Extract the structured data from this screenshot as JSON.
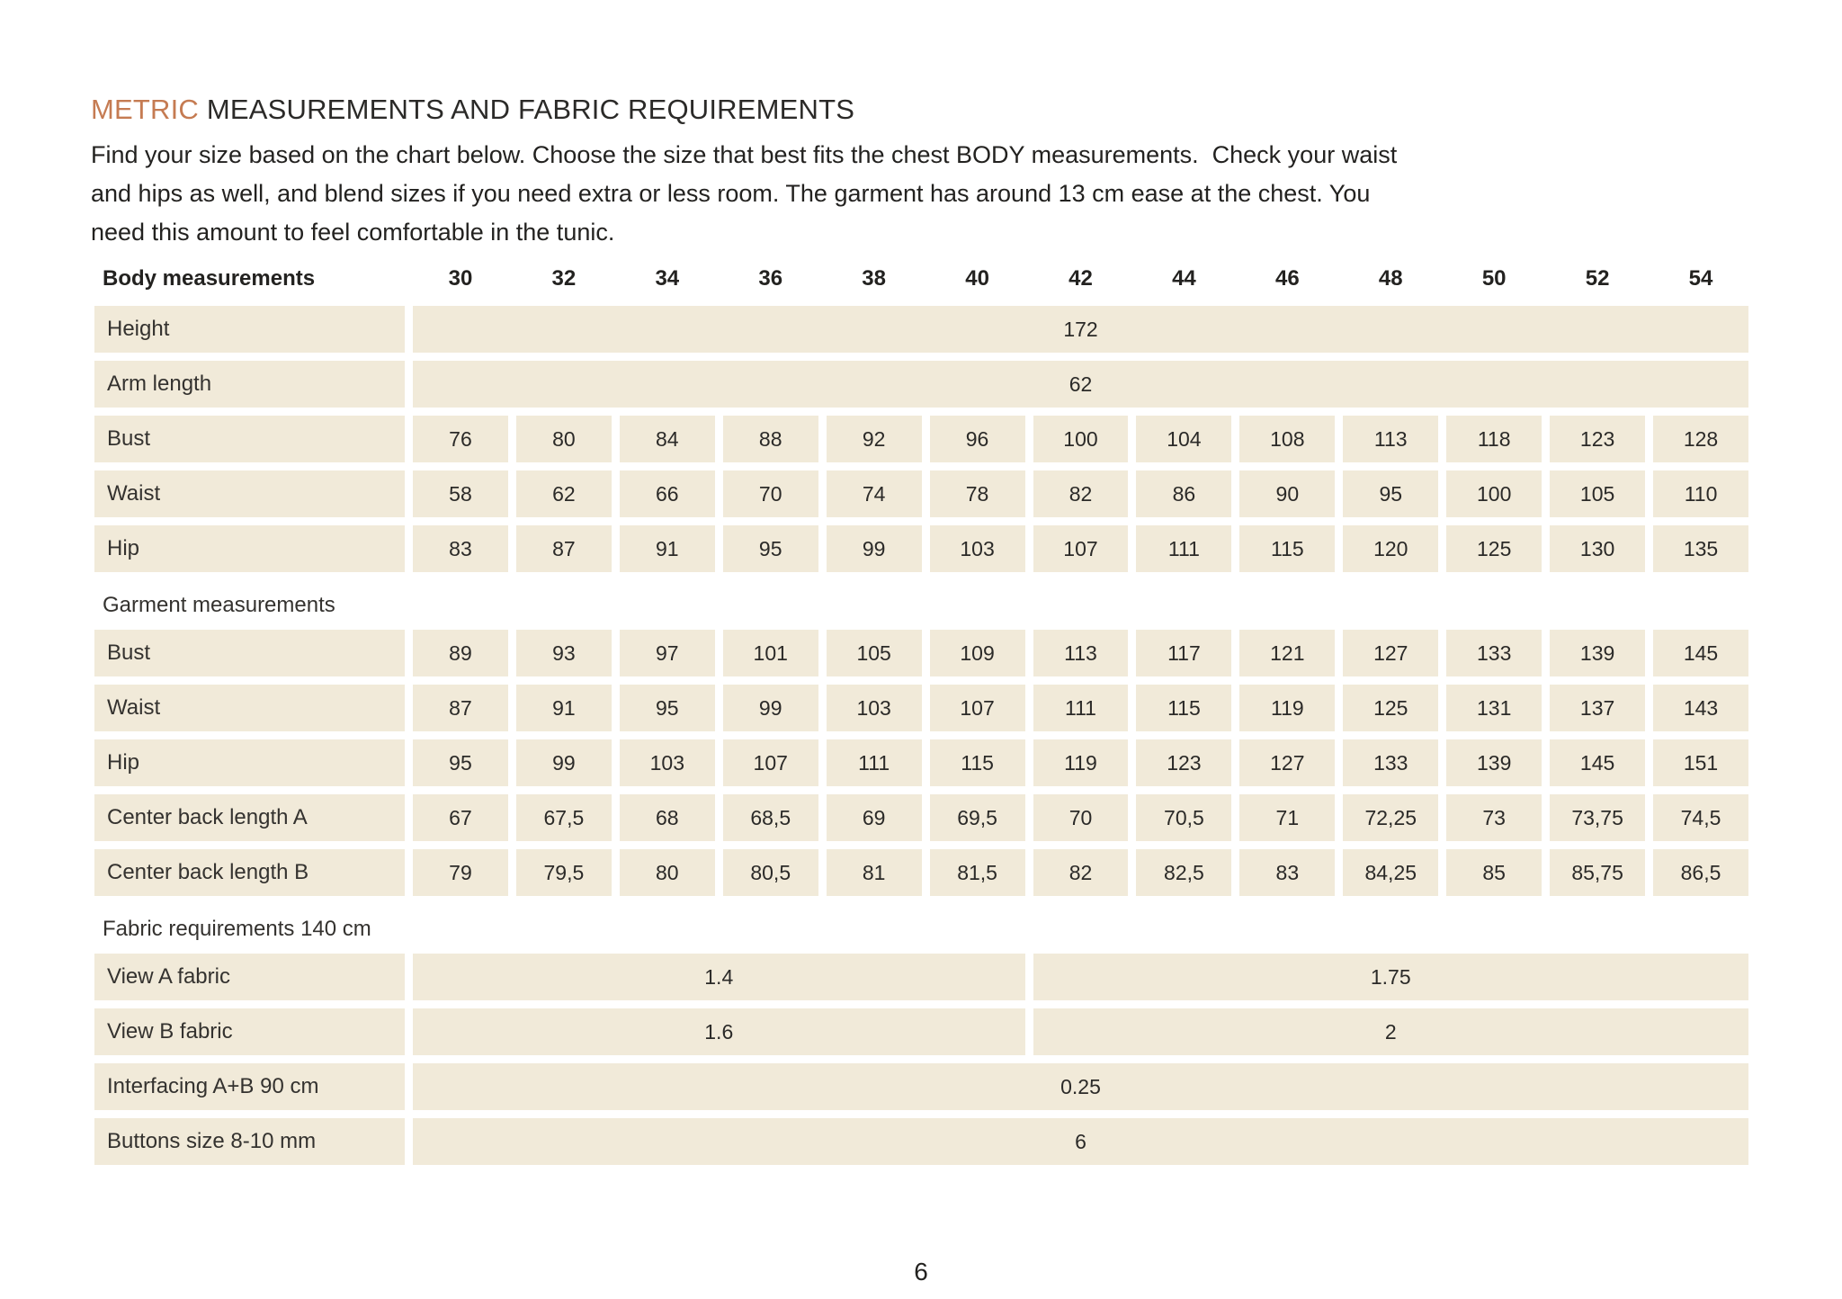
{
  "page": {
    "title_highlight": "METRIC",
    "title_rest": "MEASUREMENTS AND FABRIC REQUIREMENTS",
    "intro_lines": [
      "Find your size based on the chart below. Choose the size that best fits the chest BODY measurements.  Check your waist",
      "and hips as well, and blend sizes if you need extra or less room. The garment has around 13 cm ease at the chest. You",
      "need this amount to feel comfortable in the tunic.",
      ""
    ],
    "page_number": "6"
  },
  "colors": {
    "accent": "#c57b52",
    "cell_background": "#f1ead9",
    "text": "#2b2a28"
  },
  "table": {
    "header": {
      "label": "Body measurements",
      "sizes": [
        "30",
        "32",
        "34",
        "36",
        "38",
        "40",
        "42",
        "44",
        "46",
        "48",
        "50",
        "52",
        "54"
      ]
    },
    "rows": [
      {
        "type": "full",
        "label": "Height",
        "value": "172"
      },
      {
        "type": "full",
        "label": "Arm length",
        "value": "62"
      },
      {
        "type": "cells",
        "label": "Bust",
        "values": [
          "76",
          "80",
          "84",
          "88",
          "92",
          "96",
          "100",
          "104",
          "108",
          "113",
          "118",
          "123",
          "128"
        ]
      },
      {
        "type": "cells",
        "label": "Waist",
        "values": [
          "58",
          "62",
          "66",
          "70",
          "74",
          "78",
          "82",
          "86",
          "90",
          "95",
          "100",
          "105",
          "110"
        ]
      },
      {
        "type": "cells",
        "label": "Hip",
        "values": [
          "83",
          "87",
          "91",
          "95",
          "99",
          "103",
          "107",
          "111",
          "115",
          "120",
          "125",
          "130",
          "135"
        ]
      },
      {
        "type": "section",
        "label": "Garment measurements"
      },
      {
        "type": "cells",
        "label": "Bust",
        "values": [
          "89",
          "93",
          "97",
          "101",
          "105",
          "109",
          "113",
          "117",
          "121",
          "127",
          "133",
          "139",
          "145"
        ]
      },
      {
        "type": "cells",
        "label": "Waist",
        "values": [
          "87",
          "91",
          "95",
          "99",
          "103",
          "107",
          "111",
          "115",
          "119",
          "125",
          "131",
          "137",
          "143"
        ]
      },
      {
        "type": "cells",
        "label": "Hip",
        "values": [
          "95",
          "99",
          "103",
          "107",
          "111",
          "115",
          "119",
          "123",
          "127",
          "133",
          "139",
          "145",
          "151"
        ]
      },
      {
        "type": "cells",
        "label": "Center back length A",
        "values": [
          "67",
          "67,5",
          "68",
          "68,5",
          "69",
          "69,5",
          "70",
          "70,5",
          "71",
          "72,25",
          "73",
          "73,75",
          "74,5"
        ]
      },
      {
        "type": "cells",
        "label": "Center back length B",
        "values": [
          "79",
          "79,5",
          "80",
          "80,5",
          "81",
          "81,5",
          "82",
          "82,5",
          "83",
          "84,25",
          "85",
          "85,75",
          "86,5"
        ]
      },
      {
        "type": "section",
        "label": "Fabric requirements 140 cm"
      },
      {
        "type": "split",
        "label": "View A fabric",
        "left_value": "1.4",
        "left_span": 6,
        "right_value": "1.75",
        "right_span": 7
      },
      {
        "type": "split",
        "label": "View B fabric",
        "left_value": "1.6",
        "left_span": 6,
        "right_value": "2",
        "right_span": 7
      },
      {
        "type": "full",
        "label": "Interfacing A+B 90 cm",
        "value": "0.25"
      },
      {
        "type": "full",
        "label": "Buttons size 8-10 mm",
        "value": "6"
      }
    ]
  }
}
